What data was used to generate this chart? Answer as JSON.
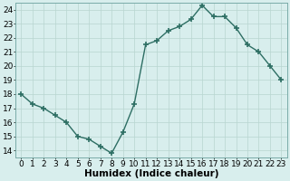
{
  "x": [
    0,
    1,
    2,
    3,
    4,
    5,
    6,
    7,
    8,
    9,
    10,
    11,
    12,
    13,
    14,
    15,
    16,
    17,
    18,
    19,
    20,
    21,
    22,
    23
  ],
  "y": [
    18,
    17.3,
    17,
    16.5,
    16,
    15,
    14.8,
    14.3,
    13.8,
    15.3,
    17.3,
    21.5,
    21.8,
    22.5,
    22.8,
    23.3,
    24.3,
    23.5,
    23.5,
    22.7,
    21.5,
    21,
    20,
    19
  ],
  "line_color": "#2d6e63",
  "marker": "+",
  "marker_size": 4,
  "marker_color": "#2d6e63",
  "bg_color": "#d8eeed",
  "grid_color": "#b8d5d0",
  "xlabel": "Humidex (Indice chaleur)",
  "ylabel": "",
  "xlim": [
    -0.5,
    23.5
  ],
  "ylim": [
    13.5,
    24.5
  ],
  "yticks": [
    14,
    15,
    16,
    17,
    18,
    19,
    20,
    21,
    22,
    23,
    24
  ],
  "xticks": [
    0,
    1,
    2,
    3,
    4,
    5,
    6,
    7,
    8,
    9,
    10,
    11,
    12,
    13,
    14,
    15,
    16,
    17,
    18,
    19,
    20,
    21,
    22,
    23
  ],
  "tick_fontsize": 6.5,
  "xlabel_fontsize": 7.5,
  "line_width": 1.0,
  "marker_linewidth": 1.2
}
